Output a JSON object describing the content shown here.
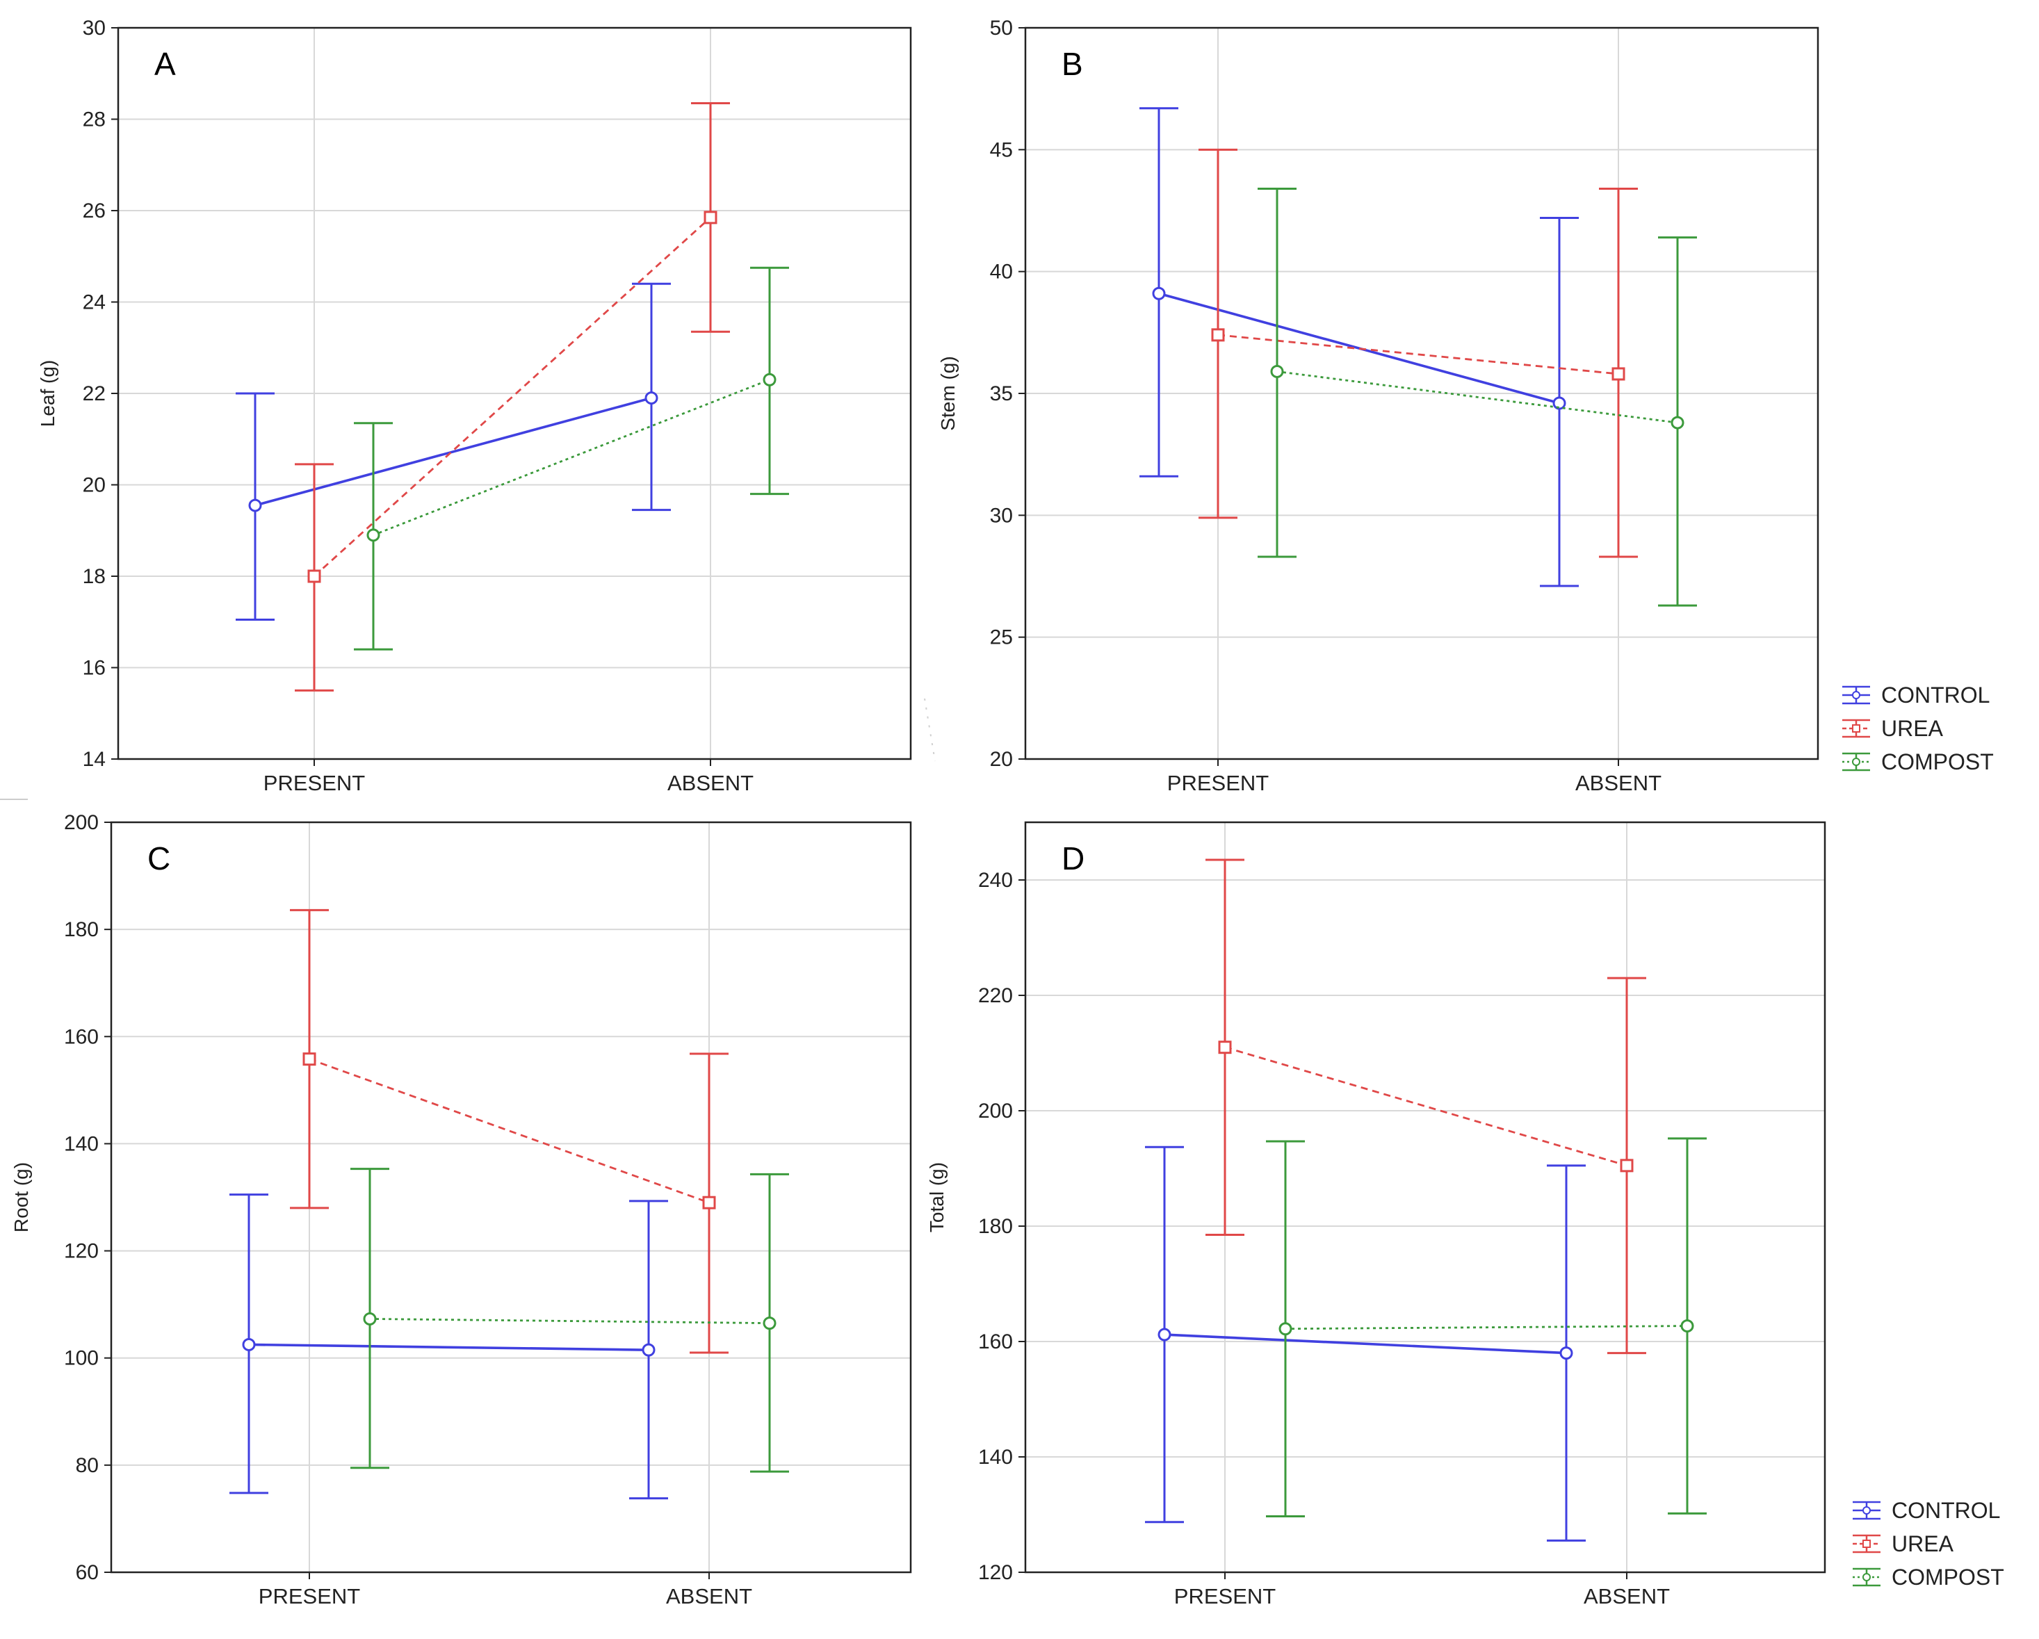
{
  "colors": {
    "CONTROL": "#4040e0",
    "UREA": "#e04848",
    "COMPOST": "#3c9a3c",
    "grid": "#d8d8d8",
    "axis": "#222222"
  },
  "legend": [
    "CONTROL",
    "UREA",
    "COMPOST"
  ],
  "chart_data": [
    {
      "panel": "A",
      "type": "line",
      "ylabel": "Leaf (g)",
      "categories": [
        "PRESENT",
        "ABSENT"
      ],
      "ylim": [
        14,
        30
      ],
      "yticks": [
        14,
        16,
        18,
        20,
        22,
        24,
        26,
        28,
        30
      ],
      "grid": true,
      "legend": "none",
      "series": [
        {
          "name": "CONTROL",
          "values": [
            19.55,
            21.9
          ],
          "lower": [
            17.05,
            19.45
          ],
          "upper": [
            22.0,
            24.4
          ]
        },
        {
          "name": "UREA",
          "values": [
            18.0,
            25.85
          ],
          "lower": [
            15.5,
            23.35
          ],
          "upper": [
            20.45,
            28.35
          ]
        },
        {
          "name": "COMPOST",
          "values": [
            18.9,
            22.3
          ],
          "lower": [
            16.4,
            19.8
          ],
          "upper": [
            21.35,
            24.75
          ]
        }
      ]
    },
    {
      "panel": "B",
      "type": "line",
      "ylabel": "Stem (g)",
      "categories": [
        "PRESENT",
        "ABSENT"
      ],
      "ylim": [
        20,
        50
      ],
      "yticks": [
        20,
        25,
        30,
        35,
        40,
        45,
        50
      ],
      "grid": true,
      "legend": "bottom-right",
      "series": [
        {
          "name": "CONTROL",
          "values": [
            39.1,
            34.6
          ],
          "lower": [
            31.6,
            27.1
          ],
          "upper": [
            46.7,
            42.2
          ]
        },
        {
          "name": "UREA",
          "values": [
            37.4,
            35.8
          ],
          "lower": [
            29.9,
            28.3
          ],
          "upper": [
            45.0,
            43.4
          ]
        },
        {
          "name": "COMPOST",
          "values": [
            35.9,
            33.8
          ],
          "lower": [
            28.3,
            26.3
          ],
          "upper": [
            43.4,
            41.4
          ]
        }
      ]
    },
    {
      "panel": "C",
      "type": "line",
      "ylabel": "Root (g)",
      "categories": [
        "PRESENT",
        "ABSENT"
      ],
      "ylim": [
        60,
        200
      ],
      "yticks": [
        60,
        80,
        100,
        120,
        140,
        160,
        180,
        200
      ],
      "grid": true,
      "legend": "none",
      "series": [
        {
          "name": "CONTROL",
          "values": [
            102.5,
            101.5
          ],
          "lower": [
            74.8,
            73.8
          ],
          "upper": [
            130.5,
            129.3
          ]
        },
        {
          "name": "UREA",
          "values": [
            155.8,
            129.0
          ],
          "lower": [
            128.0,
            101.0
          ],
          "upper": [
            183.6,
            156.8
          ]
        },
        {
          "name": "COMPOST",
          "values": [
            107.3,
            106.5
          ],
          "lower": [
            79.5,
            78.8
          ],
          "upper": [
            135.3,
            134.3
          ]
        }
      ]
    },
    {
      "panel": "D",
      "type": "line",
      "ylabel": "Total (g)",
      "categories": [
        "PRESENT",
        "ABSENT"
      ],
      "ylim": [
        120,
        250
      ],
      "yticks": [
        120,
        140,
        160,
        180,
        200,
        220,
        240
      ],
      "grid": true,
      "legend": "bottom-right",
      "series": [
        {
          "name": "CONTROL",
          "values": [
            161.2,
            158.0
          ],
          "lower": [
            128.7,
            125.5
          ],
          "upper": [
            193.7,
            190.5
          ]
        },
        {
          "name": "UREA",
          "values": [
            211.0,
            190.5
          ],
          "lower": [
            178.5,
            158.0
          ],
          "upper": [
            243.5,
            223.0
          ]
        },
        {
          "name": "COMPOST",
          "values": [
            162.2,
            162.7
          ],
          "lower": [
            129.7,
            130.2
          ],
          "upper": [
            194.7,
            195.2
          ]
        }
      ]
    }
  ]
}
